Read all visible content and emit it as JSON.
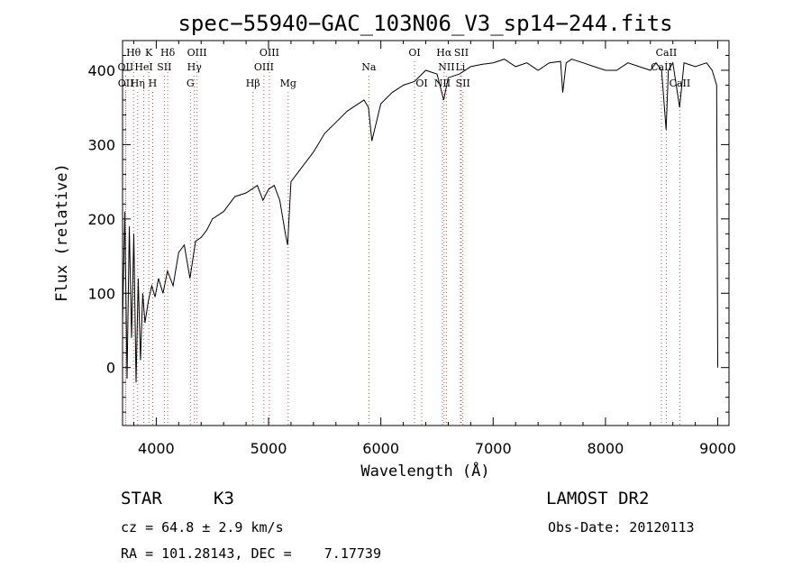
{
  "chart_data": {
    "type": "line",
    "title": "spec−55940−GAC_103N06_V3_sp14−244.fits",
    "xlabel": "Wavelength (Å)",
    "ylabel": "Flux (relative)",
    "xlim": [
      3700,
      9100
    ],
    "ylim": [
      -78,
      440
    ],
    "xticks": [
      4000,
      5000,
      6000,
      7000,
      8000,
      9000
    ],
    "yticks": [
      0,
      100,
      200,
      300,
      400
    ],
    "line_color": "#000000",
    "marker_color": "#c0504d",
    "series": [
      {
        "x": [
          3700,
          3720,
          3740,
          3760,
          3780,
          3800,
          3820,
          3840,
          3860,
          3880,
          3900,
          3930,
          3960,
          3990,
          4020,
          4060,
          4100,
          4150,
          4200,
          4250,
          4300,
          4350,
          4400,
          4450,
          4500,
          4600,
          4700,
          4800,
          4900,
          4950,
          5000,
          5050,
          5100,
          5150,
          5170,
          5200,
          5300,
          5400,
          5500,
          5600,
          5700,
          5800,
          5850,
          5890,
          5920,
          6000,
          6100,
          6200,
          6300,
          6400,
          6500,
          6560,
          6600,
          6700,
          6800,
          6900,
          7000,
          7100,
          7200,
          7300,
          7400,
          7500,
          7600,
          7620,
          7650,
          7700,
          7800,
          7900,
          8000,
          8100,
          8200,
          8300,
          8400,
          8450,
          8500,
          8540,
          8560,
          8600,
          8660,
          8700,
          8800,
          8900,
          8950,
          8990,
          9000
        ],
        "y": [
          60,
          210,
          -15,
          190,
          40,
          180,
          -20,
          120,
          10,
          100,
          60,
          90,
          110,
          95,
          120,
          100,
          130,
          110,
          155,
          165,
          120,
          170,
          175,
          185,
          200,
          210,
          230,
          235,
          245,
          225,
          240,
          245,
          225,
          180,
          165,
          250,
          270,
          290,
          315,
          330,
          345,
          355,
          360,
          350,
          305,
          355,
          370,
          380,
          385,
          400,
          395,
          360,
          390,
          395,
          405,
          408,
          410,
          415,
          405,
          410,
          400,
          410,
          412,
          370,
          410,
          415,
          410,
          405,
          400,
          400,
          410,
          405,
          400,
          410,
          400,
          320,
          400,
          410,
          350,
          410,
          405,
          410,
          400,
          380,
          0
        ]
      }
    ],
    "spectral_lines": [
      {
        "label": "Hθ",
        "x": 3798,
        "row": 1
      },
      {
        "label": "K",
        "x": 3934,
        "row": 1
      },
      {
        "label": "Hδ",
        "x": 4102,
        "row": 1
      },
      {
        "label": "OIII",
        "x": 4363,
        "row": 1
      },
      {
        "label": "OIII",
        "x": 5007,
        "row": 1
      },
      {
        "label": "OI",
        "x": 6300,
        "row": 1
      },
      {
        "label": "Hα",
        "x": 6563,
        "row": 1
      },
      {
        "label": "SII",
        "x": 6717,
        "row": 1
      },
      {
        "label": "CaII",
        "x": 8542,
        "row": 1
      },
      {
        "label": "OII",
        "x": 3727,
        "row": 2
      },
      {
        "label": "HeI",
        "x": 3889,
        "row": 2
      },
      {
        "label": "SII",
        "x": 4072,
        "row": 2
      },
      {
        "label": "Hγ",
        "x": 4340,
        "row": 2
      },
      {
        "label": "OIII",
        "x": 4959,
        "row": 2
      },
      {
        "label": "Na",
        "x": 5893,
        "row": 2
      },
      {
        "label": "NII",
        "x": 6584,
        "row": 2
      },
      {
        "label": "Li",
        "x": 6708,
        "row": 2
      },
      {
        "label": "CaII",
        "x": 8498,
        "row": 2
      },
      {
        "label": "OII",
        "x": 3729,
        "row": 3
      },
      {
        "label": "Hη",
        "x": 3835,
        "row": 3
      },
      {
        "label": "H",
        "x": 3968,
        "row": 3
      },
      {
        "label": "G",
        "x": 4304,
        "row": 3
      },
      {
        "label": "Hβ",
        "x": 4861,
        "row": 3
      },
      {
        "label": "Mg",
        "x": 5175,
        "row": 3
      },
      {
        "label": "OI",
        "x": 6364,
        "row": 3
      },
      {
        "label": "NII",
        "x": 6548,
        "row": 3
      },
      {
        "label": "SII",
        "x": 6731,
        "row": 3
      },
      {
        "label": "CaII",
        "x": 8662,
        "row": 3
      }
    ]
  },
  "info": {
    "object_class": "STAR",
    "subclass": "K3",
    "survey": "LAMOST DR2",
    "redshift": "cz = 64.8 ± 2.9 km/s",
    "obs_date": "Obs-Date: 20120113",
    "coords": "RA = 101.28143, DEC =    7.17739"
  }
}
